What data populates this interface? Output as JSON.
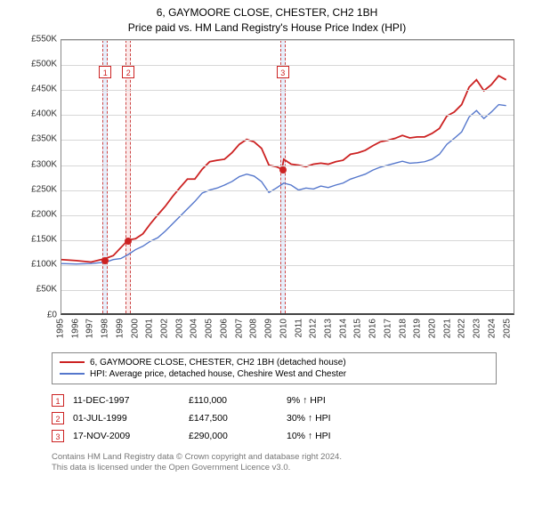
{
  "title": {
    "line1": "6, GAYMOORE CLOSE, CHESTER, CH2 1BH",
    "line2": "Price paid vs. HM Land Registry's House Price Index (HPI)"
  },
  "chart": {
    "type": "line",
    "background_color": "#ffffff",
    "grid_color": "#d7d7d7",
    "border_color": "#888888",
    "y": {
      "min": 0,
      "max": 550000,
      "step": 50000,
      "labels": [
        "£0",
        "£50K",
        "£100K",
        "£150K",
        "£200K",
        "£250K",
        "£300K",
        "£350K",
        "£400K",
        "£450K",
        "£500K",
        "£550K"
      ],
      "label_fontsize": 10
    },
    "x": {
      "min": 1995,
      "max": 2025.5,
      "years": [
        1995,
        1996,
        1997,
        1998,
        1999,
        2000,
        2001,
        2002,
        2003,
        2004,
        2005,
        2006,
        2007,
        2008,
        2009,
        2010,
        2011,
        2012,
        2013,
        2014,
        2015,
        2016,
        2017,
        2018,
        2019,
        2020,
        2021,
        2022,
        2023,
        2024,
        2025
      ],
      "label_fontsize": 10
    },
    "series": [
      {
        "name": "property",
        "label": "6, GAYMOORE CLOSE, CHESTER, CH2 1BH (detached house)",
        "color": "#cc2222",
        "width": 1.8,
        "data": [
          [
            1995,
            108000
          ],
          [
            1996,
            106000
          ],
          [
            1997,
            103000
          ],
          [
            1997.95,
            110000
          ],
          [
            1998.5,
            116000
          ],
          [
            1999.5,
            147500
          ],
          [
            2000,
            150000
          ],
          [
            2000.5,
            160000
          ],
          [
            2001,
            180000
          ],
          [
            2001.5,
            198000
          ],
          [
            2002,
            215000
          ],
          [
            2002.5,
            235000
          ],
          [
            2003,
            253000
          ],
          [
            2003.5,
            270000
          ],
          [
            2004,
            270000
          ],
          [
            2004.5,
            290000
          ],
          [
            2005,
            305000
          ],
          [
            2005.5,
            308000
          ],
          [
            2006,
            310000
          ],
          [
            2006.5,
            323000
          ],
          [
            2007,
            340000
          ],
          [
            2007.5,
            350000
          ],
          [
            2008,
            345000
          ],
          [
            2008.5,
            332000
          ],
          [
            2009,
            298000
          ],
          [
            2009.5,
            295000
          ],
          [
            2009.88,
            290000
          ],
          [
            2010,
            310000
          ],
          [
            2010.5,
            300000
          ],
          [
            2011,
            298000
          ],
          [
            2011.5,
            295000
          ],
          [
            2012,
            300000
          ],
          [
            2012.5,
            302000
          ],
          [
            2013,
            300000
          ],
          [
            2013.5,
            305000
          ],
          [
            2014,
            308000
          ],
          [
            2014.5,
            320000
          ],
          [
            2015,
            323000
          ],
          [
            2015.5,
            328000
          ],
          [
            2016,
            337000
          ],
          [
            2016.5,
            345000
          ],
          [
            2017,
            348000
          ],
          [
            2017.5,
            352000
          ],
          [
            2018,
            358000
          ],
          [
            2018.5,
            353000
          ],
          [
            2019,
            355000
          ],
          [
            2019.5,
            355000
          ],
          [
            2020,
            362000
          ],
          [
            2020.5,
            372000
          ],
          [
            2021,
            397000
          ],
          [
            2021.5,
            405000
          ],
          [
            2022,
            420000
          ],
          [
            2022.5,
            455000
          ],
          [
            2023,
            470000
          ],
          [
            2023.5,
            448000
          ],
          [
            2024,
            460000
          ],
          [
            2024.5,
            478000
          ],
          [
            2025,
            470000
          ]
        ]
      },
      {
        "name": "hpi",
        "label": "HPI: Average price, detached house, Cheshire West and Chester",
        "color": "#5577cc",
        "width": 1.4,
        "data": [
          [
            1995,
            100000
          ],
          [
            1996,
            99000
          ],
          [
            1997,
            100000
          ],
          [
            1998,
            103000
          ],
          [
            1998.5,
            108000
          ],
          [
            1999,
            110000
          ],
          [
            1999.5,
            118000
          ],
          [
            2000,
            128000
          ],
          [
            2000.5,
            135000
          ],
          [
            2001,
            145000
          ],
          [
            2001.5,
            152000
          ],
          [
            2002,
            165000
          ],
          [
            2002.5,
            180000
          ],
          [
            2003,
            195000
          ],
          [
            2003.5,
            210000
          ],
          [
            2004,
            225000
          ],
          [
            2004.5,
            242000
          ],
          [
            2005,
            248000
          ],
          [
            2005.5,
            252000
          ],
          [
            2006,
            258000
          ],
          [
            2006.5,
            265000
          ],
          [
            2007,
            275000
          ],
          [
            2007.5,
            280000
          ],
          [
            2008,
            276000
          ],
          [
            2008.5,
            265000
          ],
          [
            2009,
            243000
          ],
          [
            2009.5,
            252000
          ],
          [
            2010,
            262000
          ],
          [
            2010.5,
            258000
          ],
          [
            2011,
            248000
          ],
          [
            2011.5,
            252000
          ],
          [
            2012,
            250000
          ],
          [
            2012.5,
            256000
          ],
          [
            2013,
            253000
          ],
          [
            2013.5,
            258000
          ],
          [
            2014,
            262000
          ],
          [
            2014.5,
            270000
          ],
          [
            2015,
            275000
          ],
          [
            2015.5,
            280000
          ],
          [
            2016,
            288000
          ],
          [
            2016.5,
            294000
          ],
          [
            2017,
            298000
          ],
          [
            2017.5,
            302000
          ],
          [
            2018,
            306000
          ],
          [
            2018.5,
            302000
          ],
          [
            2019,
            303000
          ],
          [
            2019.5,
            305000
          ],
          [
            2020,
            310000
          ],
          [
            2020.5,
            320000
          ],
          [
            2021,
            340000
          ],
          [
            2021.5,
            352000
          ],
          [
            2022,
            365000
          ],
          [
            2022.5,
            395000
          ],
          [
            2023,
            408000
          ],
          [
            2023.5,
            392000
          ],
          [
            2024,
            405000
          ],
          [
            2024.5,
            420000
          ],
          [
            2025,
            418000
          ]
        ]
      }
    ],
    "sale_markers": [
      {
        "num": "1",
        "year": 1997.95,
        "price": 110000,
        "band_color": "#e6eefb",
        "band_width_years": 0.35
      },
      {
        "num": "2",
        "year": 1999.5,
        "price": 147500,
        "band_color": "#fbe9e9",
        "band_width_years": 0.35
      },
      {
        "num": "3",
        "year": 2009.88,
        "price": 290000,
        "band_color": "#e6eefb",
        "band_width_years": 0.35
      }
    ],
    "marker_dot_color": "#cc2222",
    "marker_dot_size": 8,
    "marker_box_top_y": 485000
  },
  "legend": {
    "border_color": "#888888",
    "fontsize": 10
  },
  "sales_table": {
    "rows": [
      {
        "num": "1",
        "date": "11-DEC-1997",
        "price": "£110,000",
        "pct": "9% ↑ HPI"
      },
      {
        "num": "2",
        "date": "01-JUL-1999",
        "price": "£147,500",
        "pct": "30% ↑ HPI"
      },
      {
        "num": "3",
        "date": "17-NOV-2009",
        "price": "£290,000",
        "pct": "10% ↑ HPI"
      }
    ]
  },
  "footnote": {
    "line1": "Contains HM Land Registry data © Crown copyright and database right 2024.",
    "line2": "This data is licensed under the Open Government Licence v3.0."
  }
}
